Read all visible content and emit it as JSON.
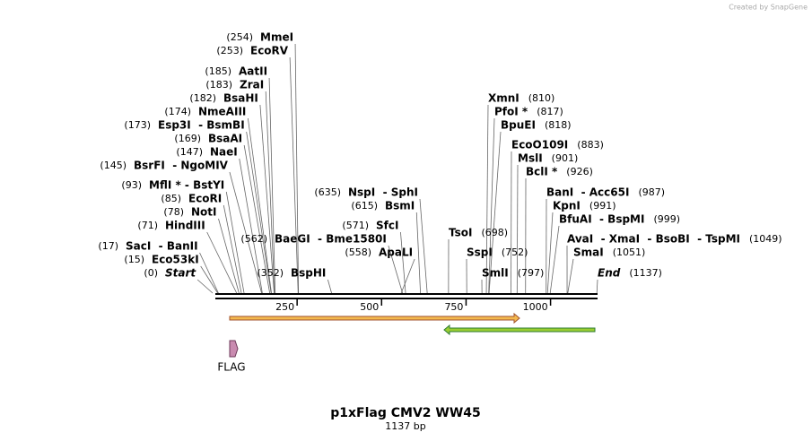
{
  "header": {
    "credit": "Created by SnapGene"
  },
  "map": {
    "name": "p1xFlag CMV2 WW45",
    "length": "1137 bp",
    "ticks": [
      250,
      500,
      750,
      1000
    ],
    "sites": [
      {
        "name": "MmeI",
        "pos": "(254)"
      },
      {
        "name": "EcoRV",
        "pos": "(253)"
      },
      {
        "name": "AatII",
        "pos": "(185)"
      },
      {
        "name": "ZraI",
        "pos": "(183)"
      },
      {
        "name": "BsaHI",
        "pos": "(182)"
      },
      {
        "name": "NmeAIII",
        "pos": "(174)"
      },
      {
        "name": "Esp3I  - BsmBI",
        "pos": "(173)"
      },
      {
        "name": "BsaAI",
        "pos": "(169)"
      },
      {
        "name": "NaeI",
        "pos": "(147)"
      },
      {
        "name": "BsrFI  - NgoMIV",
        "pos": "(145)"
      },
      {
        "name": "MflI * - BstYI",
        "pos": "(93)"
      },
      {
        "name": "EcoRI",
        "pos": "(85)"
      },
      {
        "name": "NotI",
        "pos": "(78)"
      },
      {
        "name": "HindIII",
        "pos": "(71)"
      },
      {
        "name": "SacI  - BanII",
        "pos": "(17)"
      },
      {
        "name": "Eco53kI",
        "pos": "(15)"
      },
      {
        "name": "Start",
        "pos": "(0)"
      },
      {
        "name": "BaeGI  - Bme1580I",
        "pos": "(562)"
      },
      {
        "name": "BspHI",
        "pos": "(352)"
      },
      {
        "name": "NspI  - SphI",
        "pos": "(635)"
      },
      {
        "name": "BsmI",
        "pos": "(615)"
      },
      {
        "name": "SfcI",
        "pos": "(571)"
      },
      {
        "name": "ApaLI",
        "pos": "(558)"
      },
      {
        "name": "XmnI",
        "pos": "(810)"
      },
      {
        "name": "PfoI *",
        "pos": "(817)"
      },
      {
        "name": "BpuEI",
        "pos": "(818)"
      },
      {
        "name": "EcoO109I",
        "pos": "(883)"
      },
      {
        "name": "MslI",
        "pos": "(901)"
      },
      {
        "name": "BclI *",
        "pos": "(926)"
      },
      {
        "name": "BanI  - Acc65I",
        "pos": "(987)"
      },
      {
        "name": "KpnI",
        "pos": "(991)"
      },
      {
        "name": "BfuAI  - BspMI",
        "pos": "(999)"
      },
      {
        "name": "AvaI  - XmaI  - BsoBI  - TspMI",
        "pos": "(1049)"
      },
      {
        "name": "SmaI",
        "pos": "(1051)"
      },
      {
        "name": "TsoI",
        "pos": "(698)"
      },
      {
        "name": "SspI",
        "pos": "(752)"
      },
      {
        "name": "SmlI",
        "pos": "(797)"
      },
      {
        "name": "End",
        "pos": "(1137)"
      }
    ],
    "features": [
      {
        "label": "FLAG"
      }
    ]
  }
}
